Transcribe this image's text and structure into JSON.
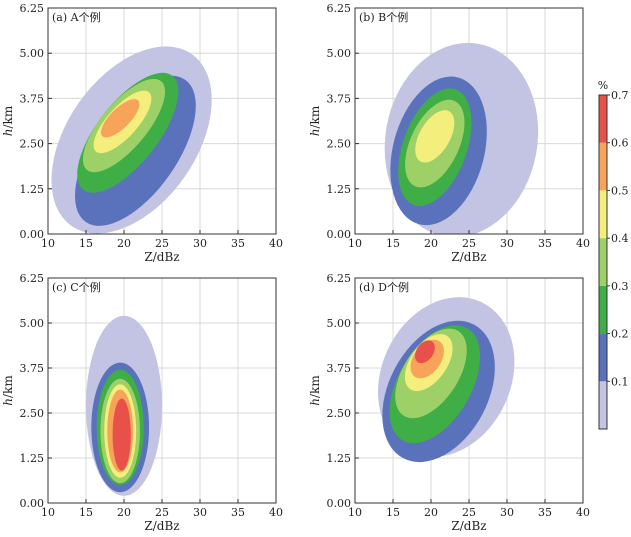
{
  "chart_data": {
    "type": "heatmap",
    "x_range": [
      10,
      40
    ],
    "x_ticks": [
      "10",
      "15",
      "20",
      "25",
      "30",
      "35",
      "40"
    ],
    "y_range": [
      0,
      6.25
    ],
    "y_ticks": [
      "0.00",
      "1.25",
      "2.50",
      "3.75",
      "5.00",
      "6.25"
    ],
    "xlabel": "Z/dBz",
    "ylabel_var": "h",
    "ylabel_unit": "/km",
    "grid": true,
    "colorbar": {
      "unit": "%",
      "ticks": [
        "0.1",
        "0.2",
        "0.3",
        "0.4",
        "0.5",
        "0.6",
        "0.7"
      ],
      "tick_values": [
        0.1,
        0.2,
        0.3,
        0.4,
        0.5,
        0.6,
        0.7
      ],
      "range": [
        0,
        0.7
      ],
      "levels": [
        {
          "min": 0.0,
          "color": "#c3c3e3"
        },
        {
          "min": 0.1,
          "color": "#5a72bc"
        },
        {
          "min": 0.2,
          "color": "#3fae46"
        },
        {
          "min": 0.3,
          "color": "#9dd067"
        },
        {
          "min": 0.4,
          "color": "#f4ef7c"
        },
        {
          "min": 0.5,
          "color": "#f7a35a"
        },
        {
          "min": 0.6,
          "color": "#e8504a"
        }
      ]
    },
    "panels": [
      {
        "label": "(a) A个例",
        "blobs": [
          {
            "cx": 21,
            "cy": 2.6,
            "sx": 8.5,
            "sy": 2.9,
            "rot": 35,
            "level": 0.0
          },
          {
            "cx": 21.5,
            "cy": 2.3,
            "sx": 5.5,
            "sy": 2.4,
            "rot": 35,
            "level": 0.1
          },
          {
            "cx": 20.5,
            "cy": 2.8,
            "sx": 4.0,
            "sy": 2.0,
            "rot": 38,
            "level": 0.2
          },
          {
            "cx": 20,
            "cy": 3.0,
            "sx": 3.0,
            "sy": 1.6,
            "rot": 40,
            "level": 0.3
          },
          {
            "cx": 19.8,
            "cy": 3.1,
            "sx": 2.0,
            "sy": 1.1,
            "rot": 42,
            "level": 0.4
          },
          {
            "cx": 19.5,
            "cy": 3.2,
            "sx": 1.3,
            "sy": 0.7,
            "rot": 45,
            "level": 0.5
          }
        ]
      },
      {
        "label": "(b) B个例",
        "blobs": [
          {
            "cx": 24,
            "cy": 2.6,
            "sx": 10,
            "sy": 2.7,
            "rot": 10,
            "level": 0.0
          },
          {
            "cx": 21,
            "cy": 2.3,
            "sx": 6.0,
            "sy": 2.1,
            "rot": 15,
            "level": 0.1
          },
          {
            "cx": 20.5,
            "cy": 2.4,
            "sx": 4.2,
            "sy": 1.7,
            "rot": 20,
            "level": 0.2
          },
          {
            "cx": 20.5,
            "cy": 2.5,
            "sx": 3.2,
            "sy": 1.3,
            "rot": 25,
            "level": 0.3
          },
          {
            "cx": 20.5,
            "cy": 2.7,
            "sx": 2.0,
            "sy": 0.8,
            "rot": 30,
            "level": 0.4
          }
        ]
      },
      {
        "label": "(c) C个例",
        "blobs": [
          {
            "cx": 20,
            "cy": 2.7,
            "sx": 5.0,
            "sy": 2.5,
            "rot": 0,
            "level": 0.0
          },
          {
            "cx": 19.5,
            "cy": 2.1,
            "sx": 3.8,
            "sy": 1.8,
            "rot": 0,
            "level": 0.1
          },
          {
            "cx": 19.5,
            "cy": 2.1,
            "sx": 3.1,
            "sy": 1.6,
            "rot": 0,
            "level": 0.2
          },
          {
            "cx": 19.5,
            "cy": 2.0,
            "sx": 2.6,
            "sy": 1.45,
            "rot": 0,
            "level": 0.3
          },
          {
            "cx": 19.5,
            "cy": 2.0,
            "sx": 2.1,
            "sy": 1.3,
            "rot": 0,
            "level": 0.4
          },
          {
            "cx": 19.5,
            "cy": 2.0,
            "sx": 1.7,
            "sy": 1.15,
            "rot": 0,
            "level": 0.5
          },
          {
            "cx": 19.7,
            "cy": 1.9,
            "sx": 1.2,
            "sy": 1.0,
            "rot": 0,
            "level": 0.6
          }
        ]
      },
      {
        "label": "(d) D个例",
        "blobs": [
          {
            "cx": 22,
            "cy": 3.5,
            "sx": 8.5,
            "sy": 2.3,
            "rot": 25,
            "level": 0.0
          },
          {
            "cx": 21,
            "cy": 3.1,
            "sx": 6.5,
            "sy": 2.1,
            "rot": 28,
            "level": 0.1
          },
          {
            "cx": 20.5,
            "cy": 3.3,
            "sx": 4.8,
            "sy": 1.8,
            "rot": 30,
            "level": 0.2
          },
          {
            "cx": 20,
            "cy": 3.6,
            "sx": 3.6,
            "sy": 1.4,
            "rot": 33,
            "level": 0.3
          },
          {
            "cx": 19.7,
            "cy": 3.9,
            "sx": 2.4,
            "sy": 0.9,
            "rot": 35,
            "level": 0.4
          },
          {
            "cx": 19.5,
            "cy": 4.0,
            "sx": 1.8,
            "sy": 0.6,
            "rot": 35,
            "level": 0.5
          },
          {
            "cx": 19.2,
            "cy": 4.2,
            "sx": 1.1,
            "sy": 0.35,
            "rot": 35,
            "level": 0.6
          }
        ]
      }
    ]
  }
}
